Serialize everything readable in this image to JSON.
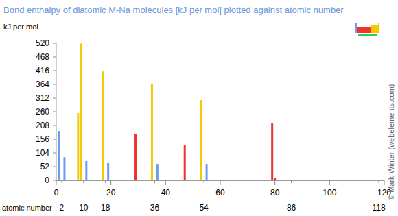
{
  "chart_data": {
    "type": "bar",
    "title": "Bond enthalpy of diatomic M-Na molecules [kJ per mol] plotted against atomic number",
    "ylabel": "kJ per mol",
    "xlabel": "atomic number",
    "x": [
      1,
      3,
      8,
      9,
      11,
      17,
      19,
      29,
      35,
      37,
      47,
      53,
      55,
      79,
      80
    ],
    "values": [
      187,
      88,
      255,
      519,
      73,
      413,
      65,
      177,
      367,
      62,
      134,
      304,
      62,
      216,
      8
    ],
    "colors": [
      "#6c9cf0",
      "#6c9cf0",
      "#f5c800",
      "#f5c800",
      "#6c9cf0",
      "#f5c800",
      "#6c9cf0",
      "#ee3333",
      "#f5c800",
      "#6c9cf0",
      "#ee3333",
      "#f5c800",
      "#6c9cf0",
      "#ee3333",
      "#ee3333"
    ],
    "xlim": [
      0,
      120
    ],
    "ylim": [
      0,
      520
    ],
    "xticks": [
      0,
      20,
      40,
      60,
      80,
      100,
      120
    ],
    "xticks2": [
      2,
      10,
      18,
      36,
      54,
      86,
      118
    ],
    "yticks": [
      0,
      52,
      104,
      156,
      208,
      260,
      312,
      364,
      416,
      468,
      520
    ],
    "annotation": "© Mark Winter (webelements.com)"
  }
}
